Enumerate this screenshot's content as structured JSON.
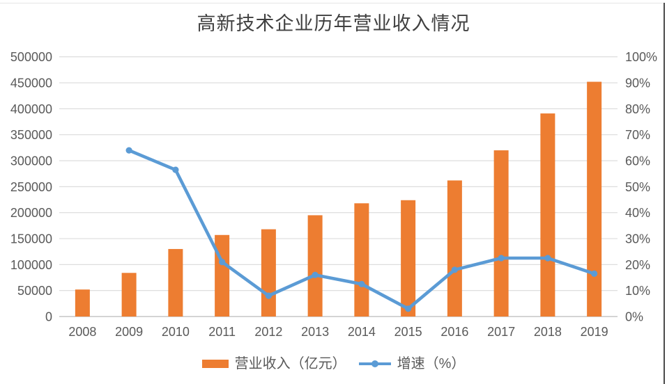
{
  "chart_data": {
    "type": "bar",
    "title": "高新技术企业历年营业收入情况",
    "categories": [
      "2008",
      "2009",
      "2010",
      "2011",
      "2012",
      "2013",
      "2014",
      "2015",
      "2016",
      "2017",
      "2018",
      "2019"
    ],
    "series": [
      {
        "name": "营业收入（亿元）",
        "type": "bar",
        "axis": "left",
        "color": "#ED7D31",
        "values": [
          52000,
          84000,
          130000,
          157000,
          168000,
          195000,
          218000,
          224000,
          262000,
          320000,
          391000,
          452000
        ]
      },
      {
        "name": "增速（%）",
        "type": "line",
        "axis": "right",
        "color": "#5B9BD5",
        "values": [
          null,
          64,
          56.5,
          21,
          8,
          16,
          12.5,
          3,
          18,
          22.5,
          22.5,
          16.5
        ]
      }
    ],
    "left_axis": {
      "min": 0,
      "max": 500000,
      "step": 50000,
      "tick_labels": [
        "0",
        "50000",
        "100000",
        "150000",
        "200000",
        "250000",
        "300000",
        "350000",
        "400000",
        "450000",
        "500000"
      ]
    },
    "right_axis": {
      "min": 0,
      "max": 100,
      "step": 10,
      "tick_labels": [
        "0%",
        "10%",
        "20%",
        "30%",
        "40%",
        "50%",
        "60%",
        "70%",
        "80%",
        "90%",
        "100%"
      ]
    },
    "legend_position": "bottom",
    "grid": true,
    "colors": {
      "bar": "#ED7D31",
      "line": "#5B9BD5",
      "gridline": "#D9D9D9",
      "axis_line": "#C6C6C6",
      "axis_text": "#595959",
      "title_text": "#404040"
    }
  }
}
